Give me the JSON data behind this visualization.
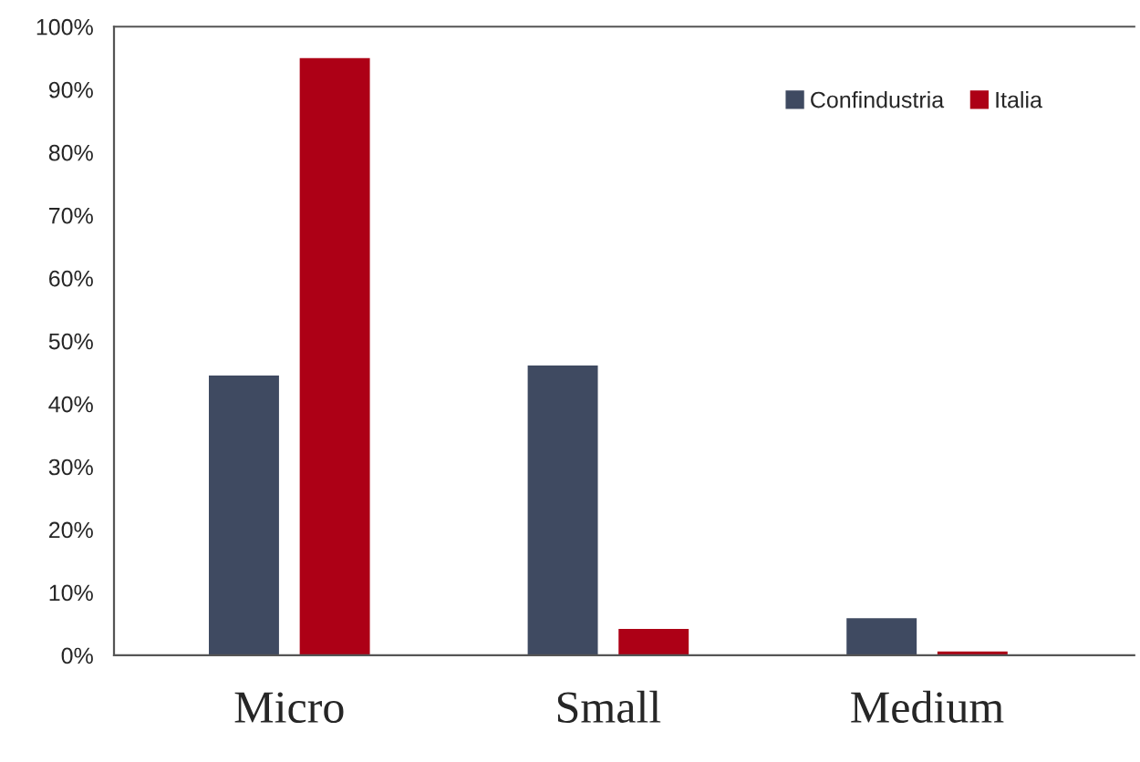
{
  "chart_data": {
    "type": "bar",
    "categories": [
      "Micro",
      "Small",
      "Medium"
    ],
    "series": [
      {
        "name": "Confindustria",
        "color": "#3f4a61",
        "values": [
          44.5,
          46.1,
          5.9
        ]
      },
      {
        "name": "Italia",
        "color": "#ad0016",
        "values": [
          95.0,
          4.2,
          0.6
        ]
      }
    ],
    "ylim": [
      0,
      100
    ],
    "yticks": [
      {
        "value": 0,
        "label": "0%"
      },
      {
        "value": 10,
        "label": "10%"
      },
      {
        "value": 20,
        "label": "20%"
      },
      {
        "value": 30,
        "label": "30%"
      },
      {
        "value": 40,
        "label": "40%"
      },
      {
        "value": 50,
        "label": "50%"
      },
      {
        "value": 60,
        "label": "60%"
      },
      {
        "value": 70,
        "label": "70%"
      },
      {
        "value": 80,
        "label": "80%"
      },
      {
        "value": 90,
        "label": "90%"
      },
      {
        "value": 100,
        "label": "100%"
      }
    ],
    "grid": false,
    "legend": "top right"
  }
}
